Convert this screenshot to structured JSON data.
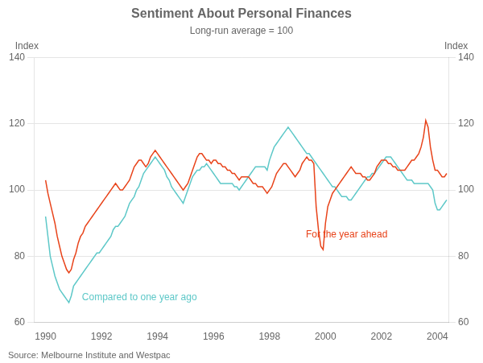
{
  "chart_data": {
    "type": "line",
    "title": "Sentiment About Personal Finances",
    "subtitle": "Long-run average = 100",
    "y_label": "Index",
    "y2_label": "Index",
    "source": "Source: Melbourne Institute and Westpac",
    "annotations": [
      {
        "text": "For the year ahead",
        "x": 1999.3,
        "y": 88,
        "color": "#E8431A"
      },
      {
        "text": "Compared to one year ago",
        "x": 1991.3,
        "y": 69,
        "color": "#5DC8C8"
      }
    ],
    "xlim": [
      1989.58,
      2004.42
    ],
    "xticks": [
      1990,
      1992,
      1994,
      1996,
      1998,
      2000,
      2002,
      2004
    ],
    "ylim": [
      60,
      140
    ],
    "yticks": [
      60,
      80,
      100,
      120,
      140
    ],
    "y2lim": [
      60,
      140
    ],
    "y2ticks": [
      60,
      80,
      100,
      120,
      140
    ],
    "grid": "y",
    "x": [
      1990,
      1990.0833,
      1990.1667,
      1990.25,
      1990.3333,
      1990.4167,
      1990.5,
      1990.5833,
      1990.6667,
      1990.75,
      1990.8333,
      1990.9167,
      1991,
      1991.0833,
      1991.1667,
      1991.25,
      1991.3333,
      1991.4167,
      1991.5,
      1991.5833,
      1991.6667,
      1991.75,
      1991.8333,
      1991.9167,
      1992,
      1992.0833,
      1992.1667,
      1992.25,
      1992.3333,
      1992.4167,
      1992.5,
      1992.5833,
      1992.6667,
      1992.75,
      1992.8333,
      1992.9167,
      1993,
      1993.0833,
      1993.1667,
      1993.25,
      1993.3333,
      1993.4167,
      1993.5,
      1993.5833,
      1993.6667,
      1993.75,
      1993.8333,
      1993.9167,
      1994,
      1994.0833,
      1994.1667,
      1994.25,
      1994.3333,
      1994.4167,
      1994.5,
      1994.5833,
      1994.6667,
      1994.75,
      1994.8333,
      1994.9167,
      1995,
      1995.0833,
      1995.1667,
      1995.25,
      1995.3333,
      1995.4167,
      1995.5,
      1995.5833,
      1995.6667,
      1995.75,
      1995.8333,
      1995.9167,
      1996,
      1996.0833,
      1996.1667,
      1996.25,
      1996.3333,
      1996.4167,
      1996.5,
      1996.5833,
      1996.6667,
      1996.75,
      1996.8333,
      1996.9167,
      1997,
      1997.0833,
      1997.1667,
      1997.25,
      1997.3333,
      1997.4167,
      1997.5,
      1997.5833,
      1997.6667,
      1997.75,
      1997.8333,
      1997.9167,
      1998,
      1998.0833,
      1998.1667,
      1998.25,
      1998.3333,
      1998.4167,
      1998.5,
      1998.5833,
      1998.6667,
      1998.75,
      1998.8333,
      1998.9167,
      1999,
      1999.0833,
      1999.1667,
      1999.25,
      1999.3333,
      1999.4167,
      1999.5,
      1999.5833,
      1999.6667,
      1999.75,
      1999.8333,
      1999.9167,
      2000,
      2000.0833,
      2000.1667,
      2000.25,
      2000.3333,
      2000.4167,
      2000.5,
      2000.5833,
      2000.6667,
      2000.75,
      2000.8333,
      2000.9167,
      2001,
      2001.0833,
      2001.1667,
      2001.25,
      2001.3333,
      2001.4167,
      2001.5,
      2001.5833,
      2001.6667,
      2001.75,
      2001.8333,
      2001.9167,
      2002,
      2002.0833,
      2002.1667,
      2002.25,
      2002.3333,
      2002.4167,
      2002.5,
      2002.5833,
      2002.6667,
      2002.75,
      2002.8333,
      2002.9167,
      2003,
      2003.0833,
      2003.1667,
      2003.25,
      2003.3333,
      2003.4167,
      2003.5,
      2003.5833,
      2003.6667,
      2003.75,
      2003.8333,
      2003.9167,
      2004,
      2004.0833,
      2004.1667,
      2004.25,
      2004.3333
    ],
    "series": [
      {
        "color": "#E8431A",
        "values": [
          103,
          99,
          96,
          93,
          90,
          86,
          83,
          80,
          78,
          76,
          75,
          76,
          79,
          81,
          84,
          86,
          87,
          89,
          90,
          91,
          92,
          93,
          94,
          95,
          96,
          97,
          98,
          99,
          100,
          101,
          102,
          101,
          100,
          100,
          101,
          102,
          103,
          105,
          107,
          108,
          109,
          109,
          108,
          107,
          108,
          110,
          111,
          112,
          111,
          110,
          109,
          108,
          107,
          106,
          105,
          104,
          103,
          102,
          101,
          100,
          101,
          102,
          104,
          106,
          108,
          110,
          111,
          111,
          110,
          109,
          109,
          108,
          109,
          109,
          108,
          108,
          107,
          107,
          106,
          106,
          105,
          105,
          104,
          103,
          104,
          104,
          104,
          104,
          103,
          102,
          102,
          101,
          101,
          101,
          100,
          99,
          100,
          101,
          103,
          105,
          106,
          107,
          108,
          108,
          107,
          106,
          105,
          104,
          105,
          106,
          108,
          109,
          110,
          109,
          109,
          108,
          95,
          88,
          83,
          82,
          90,
          95,
          97,
          99,
          100,
          101,
          102,
          103,
          104,
          105,
          106,
          107,
          106,
          105,
          105,
          105,
          104,
          104,
          103,
          103,
          104,
          105,
          107,
          108,
          109,
          109,
          109,
          108,
          108,
          107,
          107,
          106,
          106,
          106,
          106,
          107,
          108,
          109,
          109,
          110,
          111,
          113,
          116,
          121,
          119,
          113,
          109,
          106,
          106,
          105,
          104,
          104,
          105
        ]
      },
      {
        "color": "#5DC8C8",
        "values": [
          92,
          86,
          80,
          77,
          74,
          72,
          70,
          69,
          68,
          67,
          66,
          68,
          71,
          72,
          73,
          74,
          75,
          76,
          77,
          78,
          79,
          80,
          81,
          81,
          82,
          83,
          84,
          85,
          86,
          88,
          89,
          89,
          90,
          91,
          92,
          94,
          96,
          97,
          98,
          100,
          101,
          103,
          105,
          106,
          107,
          108,
          109,
          110,
          109,
          108,
          107,
          106,
          104,
          103,
          101,
          100,
          99,
          98,
          97,
          96,
          98,
          100,
          102,
          104,
          105,
          106,
          106,
          107,
          107,
          108,
          107,
          106,
          105,
          104,
          103,
          102,
          102,
          102,
          102,
          102,
          102,
          101,
          101,
          100,
          101,
          102,
          103,
          104,
          105,
          106,
          107,
          107,
          107,
          107,
          107,
          106,
          109,
          111,
          113,
          114,
          115,
          116,
          117,
          118,
          119,
          118,
          117,
          116,
          115,
          114,
          113,
          112,
          111,
          111,
          110,
          109,
          108,
          107,
          106,
          105,
          104,
          103,
          102,
          101,
          101,
          100,
          99,
          98,
          98,
          98,
          97,
          97,
          98,
          99,
          100,
          101,
          102,
          103,
          104,
          104,
          105,
          105,
          106,
          107,
          108,
          109,
          110,
          110,
          110,
          109,
          108,
          107,
          106,
          105,
          104,
          103,
          103,
          103,
          102,
          102,
          102,
          102,
          102,
          102,
          102,
          101,
          100,
          96,
          94,
          94,
          95,
          96,
          97
        ]
      }
    ]
  }
}
